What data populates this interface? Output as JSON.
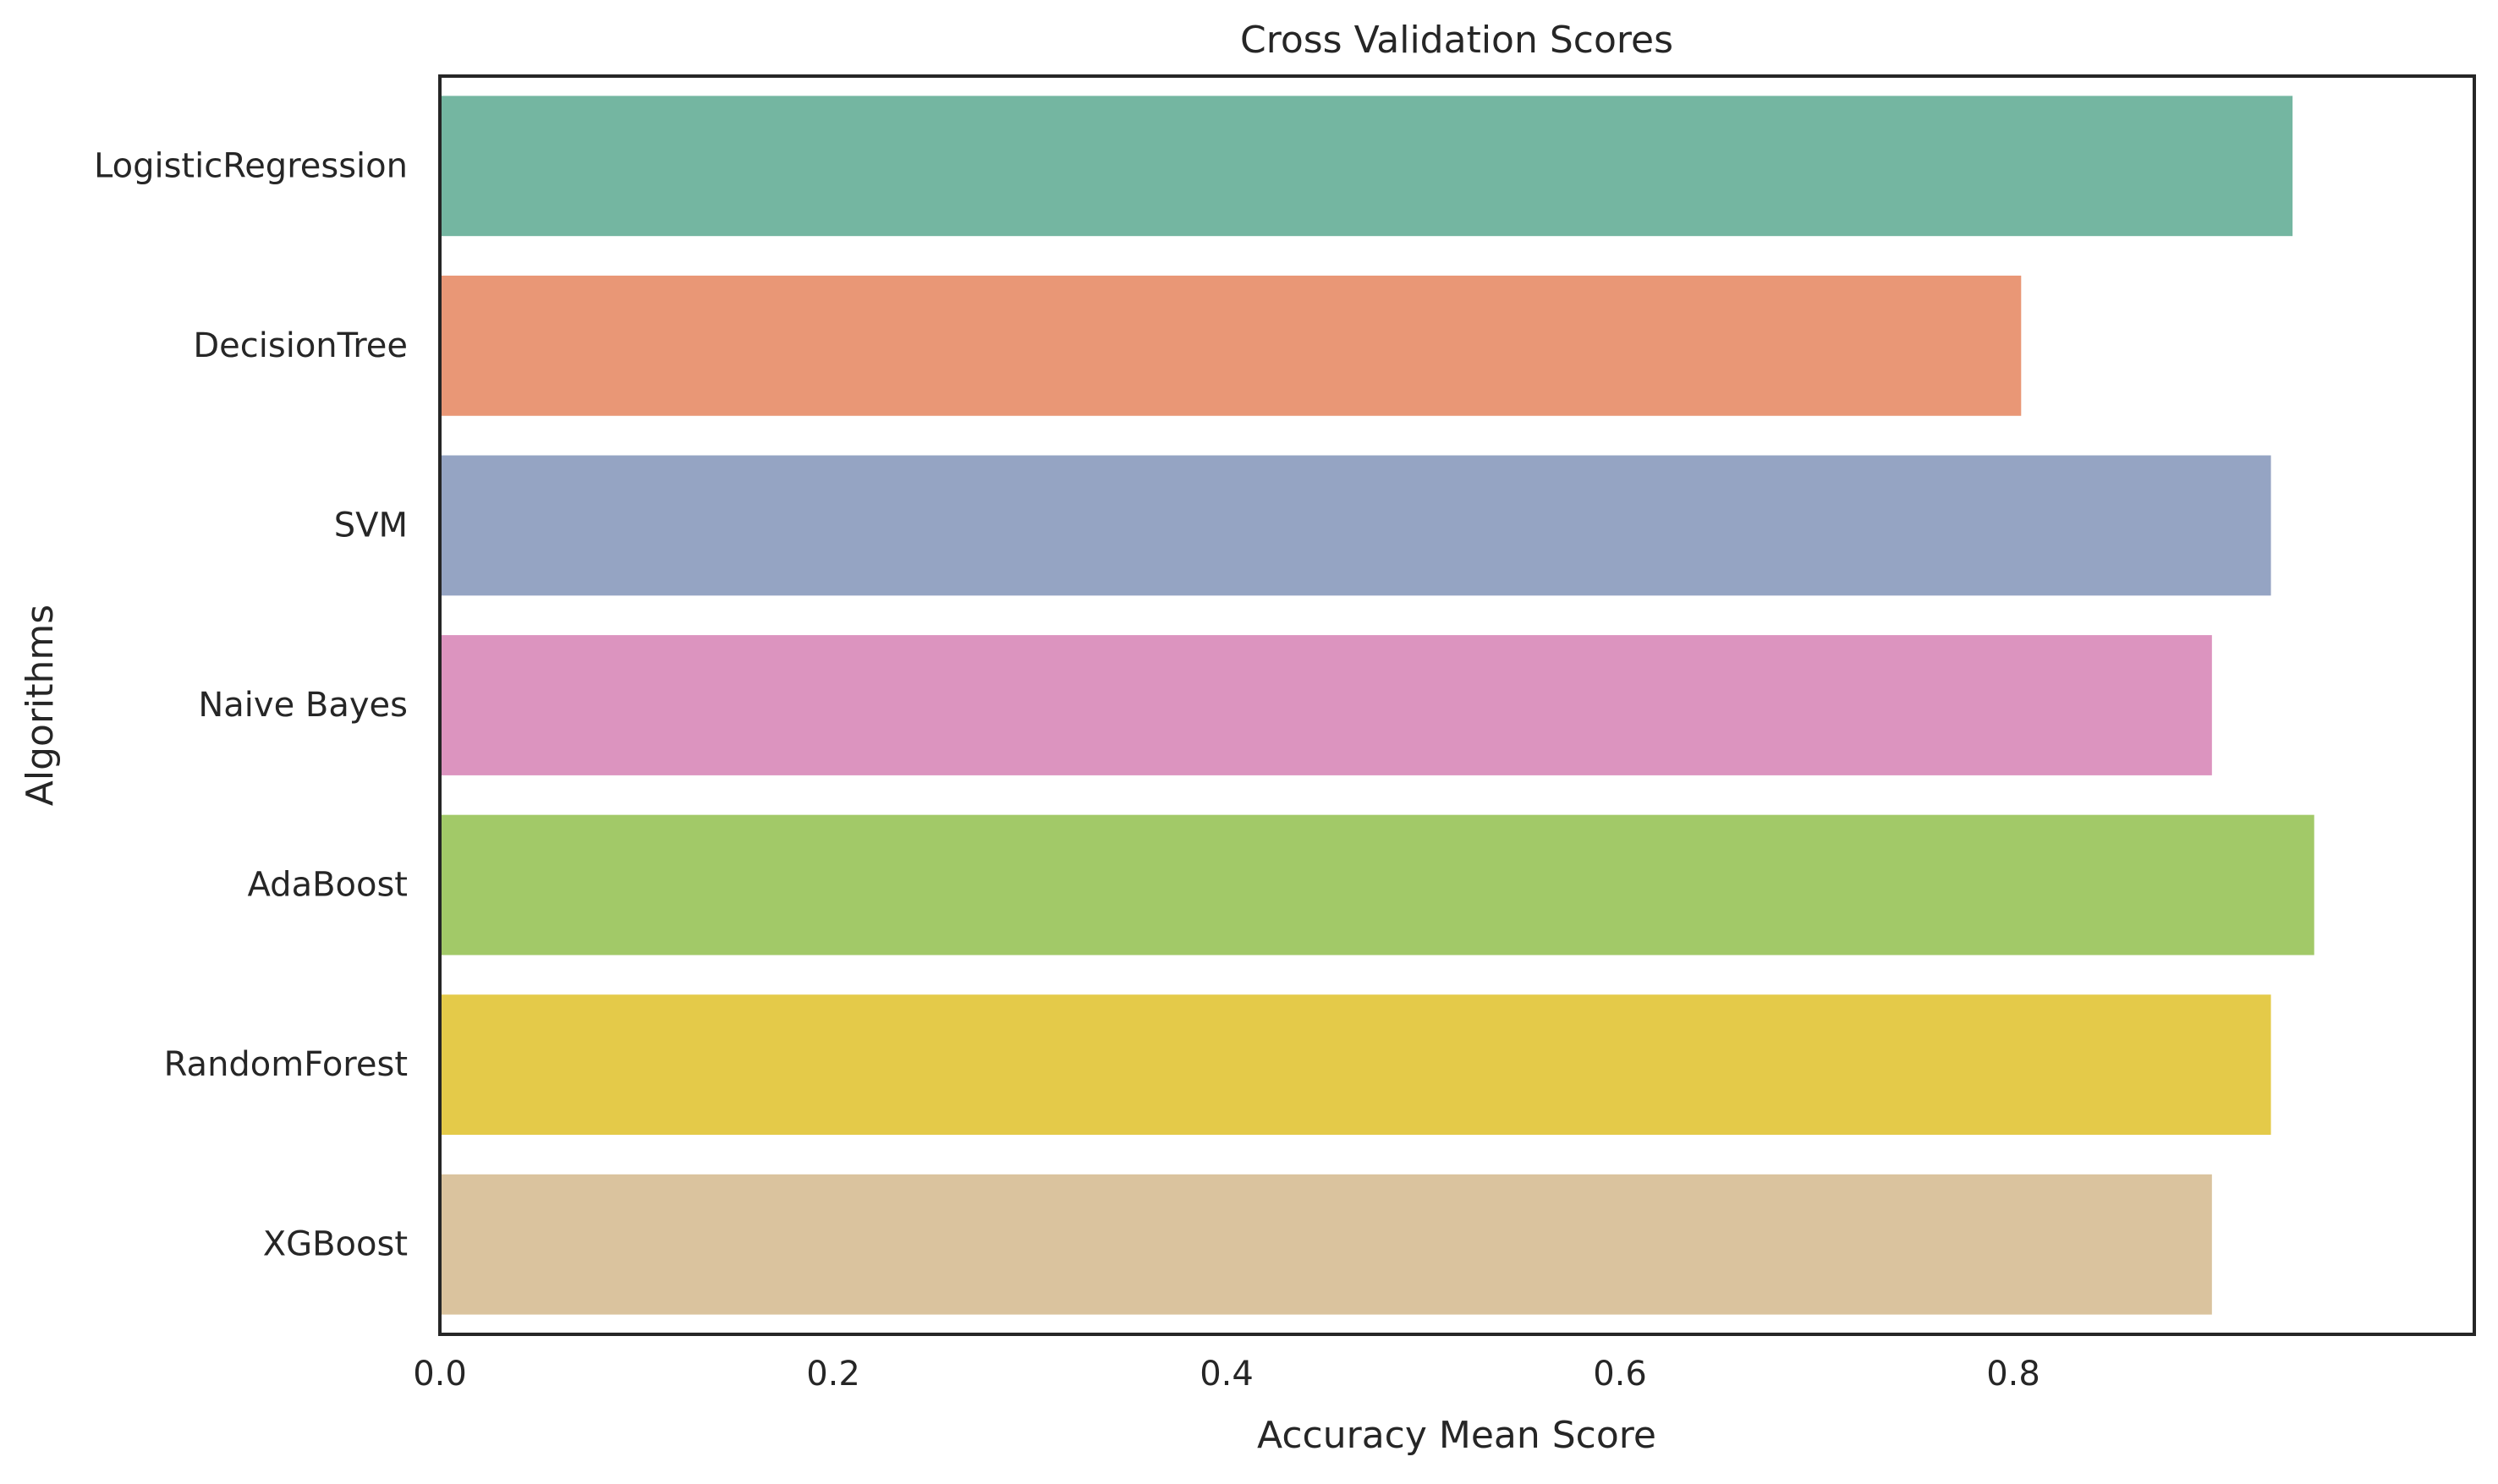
{
  "chart_data": {
    "type": "bar",
    "orientation": "horizontal",
    "title": "Cross Validation Scores",
    "xlabel": "Accuracy Mean Score",
    "ylabel": "Algorithms",
    "categories": [
      "LogisticRegression",
      "DecisionTree",
      "SVM",
      "Naive Bayes",
      "AdaBoost",
      "RandomForest",
      "XGBoost"
    ],
    "values": [
      0.942,
      0.804,
      0.931,
      0.901,
      0.953,
      0.931,
      0.901
    ],
    "colors": [
      "#74b6a1",
      "#e99776",
      "#95a4c3",
      "#dc94bf",
      "#a2c968",
      "#e4ca49",
      "#dac39e"
    ],
    "xlim": [
      0,
      1.0
    ],
    "xticks": [
      "0.0",
      "0.2",
      "0.4",
      "0.6",
      "0.8"
    ],
    "grid": false,
    "legend": "none"
  }
}
